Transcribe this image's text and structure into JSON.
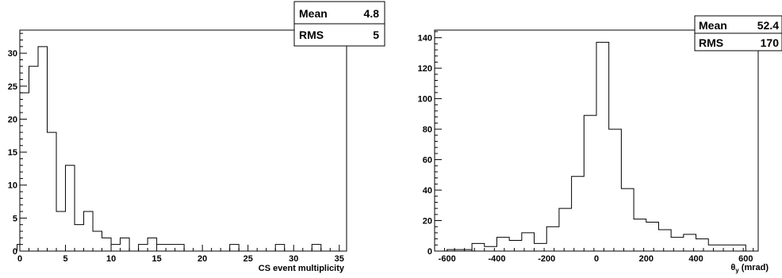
{
  "chart_data": [
    {
      "type": "histogram",
      "title": "",
      "xlabel": "CS event multiplicity",
      "ylabel": "",
      "xlim": [
        0,
        35.8
      ],
      "ylim": [
        0,
        33.5
      ],
      "bin_edges": [
        0,
        1,
        2,
        3,
        4,
        5,
        6,
        7,
        8,
        9,
        10,
        11,
        12,
        13,
        14,
        15,
        16,
        17,
        18,
        19,
        20,
        21,
        22,
        23,
        24,
        25,
        26,
        27,
        28,
        29,
        30,
        31,
        32,
        33,
        34,
        35
      ],
      "counts": [
        24,
        28,
        31,
        18,
        6,
        13,
        4,
        6,
        3,
        2,
        1,
        2,
        0,
        1,
        2,
        1,
        1,
        1,
        0,
        0,
        0,
        0,
        0,
        1,
        0,
        0,
        0,
        0,
        1,
        0,
        0,
        0,
        1,
        0,
        0
      ],
      "underflow_bin": {
        "x": [
          -0.3,
          0
        ],
        "value": 1
      },
      "x_ticks": [
        0,
        5,
        10,
        15,
        20,
        25,
        30,
        35
      ],
      "y_ticks": [
        0,
        5,
        10,
        15,
        20,
        25,
        30
      ],
      "stats": {
        "mean_label": "Mean",
        "mean_value": "4.8",
        "rms_label": "RMS",
        "rms_value": "5"
      }
    },
    {
      "type": "histogram",
      "title": "",
      "xlabel": "θ_y (mrad)",
      "xlabel_main": "θ",
      "xlabel_sub": "y",
      "xlabel_unit": " (mrad)",
      "ylabel": "",
      "xlim": [
        -650,
        650
      ],
      "ylim": [
        0,
        145
      ],
      "bin_edges": [
        -500,
        -450,
        -400,
        -350,
        -300,
        -250,
        -200,
        -150,
        -100,
        -50,
        0,
        50,
        100,
        150,
        200,
        250,
        300,
        350,
        400,
        450,
        500,
        550,
        600,
        650
      ],
      "counts": [
        5,
        3,
        9,
        7,
        12,
        5,
        16,
        28,
        49,
        89,
        137,
        80,
        41,
        21,
        19,
        14,
        9,
        11,
        8,
        4,
        4,
        4,
        0
      ],
      "lower_bins": {
        "edges": [
          -650,
          -600,
          -550,
          -500
        ],
        "counts": [
          0,
          1,
          1
        ]
      },
      "x_ticks": [
        -600,
        -400,
        -200,
        0,
        200,
        400,
        600
      ],
      "y_ticks": [
        0,
        20,
        40,
        60,
        80,
        100,
        120,
        140
      ],
      "stats": {
        "mean_label": "Mean",
        "mean_value": "52.4",
        "rms_label": "RMS",
        "rms_value": "170"
      }
    }
  ]
}
